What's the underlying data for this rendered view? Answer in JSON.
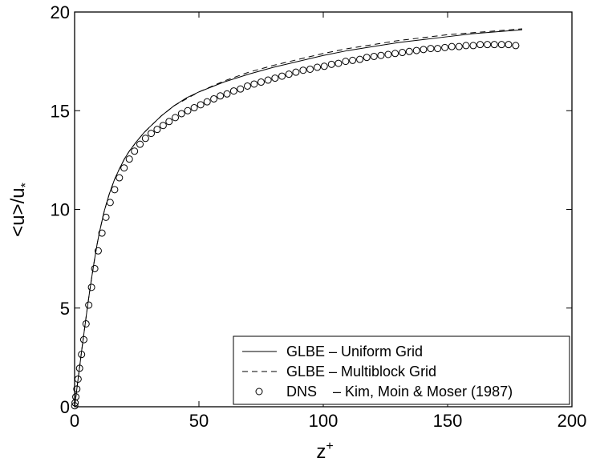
{
  "chart_data": {
    "type": "line",
    "title": "",
    "xlabel": "z",
    "xlabel_sup": "+",
    "ylabel": "<u>/u",
    "ylabel_sub": "*",
    "xlim": [
      0,
      200
    ],
    "ylim": [
      0,
      20
    ],
    "xticks": [
      0,
      50,
      100,
      150,
      200
    ],
    "yticks": [
      0,
      5,
      10,
      15,
      20
    ],
    "grid": false,
    "legend_position": "bottom-right",
    "series": [
      {
        "name": "GLBE – Uniform Grid",
        "style": "solid",
        "x": [
          0,
          1,
          2,
          3,
          4,
          5,
          6,
          7,
          8,
          9,
          10,
          12,
          14,
          16,
          18,
          20,
          22,
          25,
          28,
          30,
          35,
          40,
          45,
          50,
          60,
          70,
          80,
          90,
          100,
          110,
          120,
          130,
          140,
          150,
          160,
          170,
          180
        ],
        "y": [
          0,
          1,
          2,
          3,
          3.95,
          4.9,
          5.8,
          6.65,
          7.45,
          8.2,
          8.85,
          9.95,
          10.8,
          11.5,
          12.05,
          12.55,
          12.95,
          13.45,
          13.9,
          14.15,
          14.75,
          15.25,
          15.65,
          15.95,
          16.45,
          16.85,
          17.2,
          17.5,
          17.8,
          18.05,
          18.25,
          18.45,
          18.6,
          18.75,
          18.9,
          19.0,
          19.1
        ]
      },
      {
        "name": "GLBE – Multiblock Grid",
        "style": "dashed",
        "x": [
          0,
          1,
          2,
          3,
          4,
          5,
          6,
          7,
          8,
          9,
          10,
          12,
          14,
          16,
          18,
          20,
          22,
          25,
          28,
          30,
          35,
          40,
          45,
          50,
          60,
          70,
          80,
          90,
          100,
          110,
          120,
          130,
          140,
          150,
          160,
          170,
          180
        ],
        "y": [
          0,
          1,
          2,
          3,
          3.95,
          4.9,
          5.8,
          6.65,
          7.45,
          8.2,
          8.85,
          9.95,
          10.8,
          11.5,
          12.05,
          12.55,
          12.95,
          13.45,
          13.9,
          14.15,
          14.75,
          15.25,
          15.6,
          15.95,
          16.5,
          16.95,
          17.3,
          17.6,
          17.9,
          18.15,
          18.35,
          18.55,
          18.7,
          18.85,
          18.95,
          19.05,
          19.15
        ]
      },
      {
        "name": "DNS    – Kim, Moin & Moser (1987)",
        "style": "circles",
        "x": [
          0.05,
          0.2,
          0.5,
          0.9,
          1.4,
          2.0,
          2.8,
          3.7,
          4.6,
          5.7,
          6.8,
          8.1,
          9.5,
          11.0,
          12.6,
          14.3,
          16.1,
          18.0,
          19.9,
          22.0,
          24.1,
          26.3,
          28.5,
          30.8,
          33.2,
          35.6,
          38.0,
          40.5,
          43.0,
          45.5,
          48.1,
          50.7,
          53.3,
          56.0,
          58.6,
          61.3,
          64.0,
          66.7,
          69.5,
          72.2,
          75.0,
          77.8,
          80.6,
          83.4,
          86.2,
          89.0,
          91.9,
          94.7,
          97.6,
          100.4,
          103.3,
          106.1,
          109.0,
          111.8,
          114.7,
          117.5,
          120.4,
          123.2,
          126.1,
          128.9,
          131.8,
          134.6,
          137.5,
          140.3,
          143.2,
          146.0,
          148.9,
          151.7,
          154.6,
          157.4,
          160.3,
          163.1,
          166.0,
          168.8,
          171.7,
          174.5,
          177.4
        ],
        "y": [
          0.05,
          0.2,
          0.5,
          0.9,
          1.4,
          1.95,
          2.65,
          3.4,
          4.2,
          5.15,
          6.05,
          7.0,
          7.9,
          8.8,
          9.6,
          10.35,
          11.0,
          11.6,
          12.1,
          12.55,
          12.95,
          13.3,
          13.6,
          13.85,
          14.05,
          14.25,
          14.45,
          14.65,
          14.85,
          15.0,
          15.15,
          15.3,
          15.45,
          15.6,
          15.75,
          15.85,
          16.0,
          16.1,
          16.25,
          16.35,
          16.45,
          16.55,
          16.65,
          16.75,
          16.85,
          16.95,
          17.05,
          17.1,
          17.2,
          17.25,
          17.35,
          17.4,
          17.5,
          17.55,
          17.6,
          17.7,
          17.75,
          17.8,
          17.85,
          17.9,
          17.95,
          18.0,
          18.05,
          18.1,
          18.15,
          18.15,
          18.2,
          18.25,
          18.25,
          18.3,
          18.3,
          18.35,
          18.35,
          18.35,
          18.35,
          18.35,
          18.3
        ]
      }
    ]
  }
}
